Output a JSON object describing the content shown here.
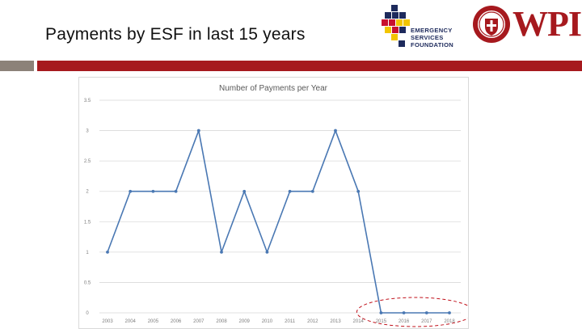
{
  "slide": {
    "title": "Payments by ESF in last 15 years"
  },
  "logos": {
    "esf": {
      "line1": "EMERGENCY",
      "line2": "SERVICES",
      "line3": "FOUNDATION"
    },
    "wpi": {
      "text": "WPI"
    }
  },
  "colors": {
    "accent_red": "#a6191e",
    "accent_grey": "#8c8279",
    "series_line": "#4a78b3",
    "highlight_ellipse": "#c0101a"
  },
  "chart_data": {
    "type": "line",
    "title": "Number of Payments per Year",
    "x": [
      "2003",
      "2004",
      "2005",
      "2006",
      "2007",
      "2008",
      "2009",
      "2010",
      "2011",
      "2012",
      "2013",
      "2014",
      "2015",
      "2016",
      "2017",
      "2018"
    ],
    "series": [
      {
        "values": [
          1,
          2,
          2,
          2,
          3,
          1,
          2,
          1,
          2,
          2,
          3,
          2,
          0,
          0,
          0,
          0
        ]
      }
    ],
    "y_ticks": [
      "3.5",
      "3",
      "2.5",
      "2",
      "1.5",
      "1",
      "0.5",
      "0"
    ],
    "ylim": [
      0,
      3.5
    ],
    "grid": true,
    "legend": "none",
    "annotation": "dashed red ellipse highlighting 2015-2018"
  }
}
